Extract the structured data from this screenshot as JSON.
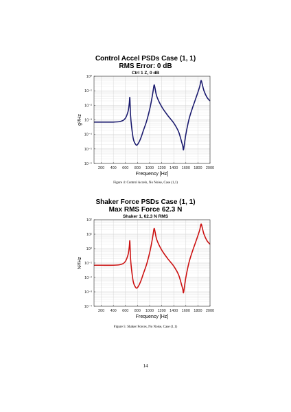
{
  "figures": [
    {
      "title_line1": "Control Accel PSDs Case (1, 1)",
      "title_line2": "RMS Error: 0 dB",
      "subtitle": "Ctrl 1 Z, 0 dB",
      "caption": "Figure 4: Control Accels, No Noise, Case (1,1)"
    },
    {
      "title_line1": "Shaker Force PSDs Case (1, 1)",
      "title_line2": "Max RMS Force 62.3 N",
      "subtitle": "Shaker 1, 62.3 N RMS",
      "caption": "Figure 5: Shaker Forces, No Noise, Case (1,1)"
    }
  ],
  "page_number": "14",
  "chart_data": [
    {
      "type": "line",
      "title": "Control Accel PSDs Case (1, 1)",
      "subtitle": "Ctrl 1 Z, 0 dB",
      "xlabel": "Frequency [Hz]",
      "ylabel": "g²/Hz",
      "y_scale": "log",
      "xlim": [
        80,
        2000
      ],
      "ylim_exponents": [
        -6,
        0
      ],
      "x_ticks": [
        200,
        400,
        600,
        800,
        1000,
        1200,
        1400,
        1600,
        1800,
        2000
      ],
      "y_tick_labels": [
        "10⁻⁶",
        "10⁻⁵",
        "10⁻⁴",
        "10⁻³",
        "10⁻²",
        "10⁻¹",
        "10⁰"
      ],
      "grid": true,
      "color": "#1a1a6e",
      "series": [
        {
          "x": [
            80,
            200,
            400,
            500,
            560,
            600,
            630,
            650,
            665,
            672,
            678,
            685,
            700,
            730,
            770,
            800,
            850,
            900,
            950,
            1000,
            1030,
            1055,
            1070,
            1078,
            1090,
            1120,
            1200,
            1300,
            1400,
            1480,
            1530,
            1550,
            1560,
            1575,
            1600,
            1650,
            1700,
            1750,
            1800,
            1830,
            1845,
            1855,
            1870,
            1900,
            1950,
            2000
          ],
          "y": [
            0.0007,
            0.0007,
            0.0007,
            0.00075,
            0.0009,
            0.0013,
            0.0025,
            0.005,
            0.015,
            0.035,
            0.01,
            0.002,
            0.0004,
            5e-05,
            2e-05,
            2e-05,
            5e-05,
            0.0002,
            0.0008,
            0.005,
            0.02,
            0.08,
            0.2,
            0.25,
            0.15,
            0.04,
            0.008,
            0.002,
            0.0006,
            0.00015,
            3e-05,
            1.5e-05,
            8.5e-06,
            2e-05,
            0.0001,
            0.001,
            0.005,
            0.02,
            0.08,
            0.2,
            0.4,
            0.5,
            0.3,
            0.1,
            0.035,
            0.02
          ]
        }
      ]
    },
    {
      "type": "line",
      "title": "Shaker Force PSDs Case (1, 1)",
      "subtitle": "Shaker 1, 62.3 N RMS",
      "xlabel": "Frequency [Hz]",
      "ylabel": "N²/Hz",
      "y_scale": "log",
      "xlim": [
        80,
        2000
      ],
      "ylim_exponents": [
        -4,
        2
      ],
      "x_ticks": [
        200,
        400,
        600,
        800,
        1000,
        1200,
        1400,
        1600,
        1800,
        2000
      ],
      "y_tick_labels": [
        "10⁻⁴",
        "10⁻³",
        "10⁻²",
        "10⁻¹",
        "10⁰",
        "10¹",
        "10²"
      ],
      "grid": true,
      "color": "#cc1111",
      "series": [
        {
          "x": [
            80,
            200,
            400,
            500,
            560,
            600,
            630,
            650,
            665,
            672,
            678,
            685,
            700,
            730,
            770,
            800,
            850,
            900,
            950,
            1000,
            1030,
            1055,
            1070,
            1078,
            1090,
            1120,
            1200,
            1300,
            1400,
            1480,
            1530,
            1550,
            1560,
            1575,
            1600,
            1650,
            1700,
            1750,
            1800,
            1830,
            1845,
            1855,
            1870,
            1900,
            1950,
            2000
          ],
          "y": [
            0.07,
            0.07,
            0.07,
            0.075,
            0.09,
            0.13,
            0.25,
            0.5,
            1.5,
            3.5,
            1.0,
            0.2,
            0.04,
            0.005,
            0.002,
            0.002,
            0.005,
            0.02,
            0.08,
            0.5,
            2.0,
            8.0,
            20.0,
            25.0,
            15.0,
            4.0,
            0.8,
            0.2,
            0.06,
            0.015,
            0.003,
            0.0015,
            0.00085,
            0.002,
            0.01,
            0.1,
            0.5,
            2.0,
            8.0,
            20.0,
            40.0,
            50.0,
            30.0,
            10.0,
            3.5,
            2.0
          ]
        }
      ]
    }
  ]
}
